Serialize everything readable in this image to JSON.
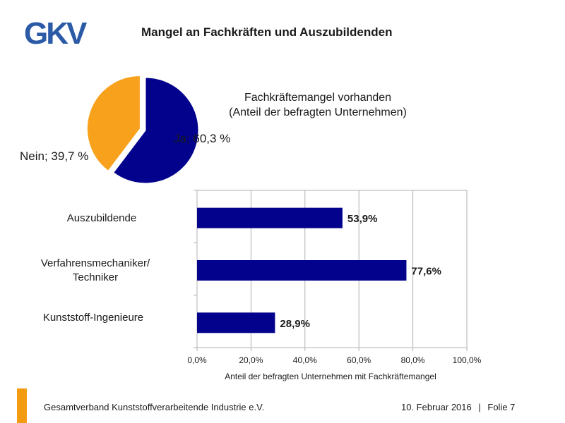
{
  "header": {
    "logo_text": "GKV",
    "title": "Mangel an Fachkräften und Auszubildenden"
  },
  "colors": {
    "blue": "#02028c",
    "orange": "#f8a11c",
    "logo_blue": "#2b5aa7",
    "accent": "#f39c11"
  },
  "chart_data": [
    {
      "type": "pie",
      "title_lines": [
        "Fachkräftemangel vorhanden",
        "(Anteil der befragten Unternehmen)"
      ],
      "slices": [
        {
          "name": "Ja",
          "value": 60.3,
          "label": "Ja; 60,3 %",
          "color": "#02028c"
        },
        {
          "name": "Nein",
          "value": 39.7,
          "label": "Nein; 39,7 %",
          "color": "#f8a11c"
        }
      ]
    },
    {
      "type": "bar",
      "orientation": "horizontal",
      "categories": [
        "Auszubildende",
        "Verfahrensmechaniker/ Techniker",
        "Kunststoff-Ingenieure"
      ],
      "category_lines": [
        [
          "Auszubildende"
        ],
        [
          "Verfahrensmechaniker/",
          "Techniker"
        ],
        [
          "Kunststoff-Ingenieure"
        ]
      ],
      "values": [
        53.9,
        77.6,
        28.9
      ],
      "data_labels": [
        "53,9%",
        "77,6%",
        "28,9%"
      ],
      "xlabel": "Anteil der befragten Unternehmen mit Fachkräftemangel",
      "xlim": [
        0,
        100
      ],
      "xticks": [
        "0,0%",
        "20,0%",
        "40,0%",
        "60,0%",
        "80,0%",
        "100,0%"
      ],
      "grid": true,
      "color": "#02028c"
    }
  ],
  "footer": {
    "organization": "Gesamtverband Kunststoffverarbeitende Industrie e.V.",
    "date": "10. Februar 2016",
    "slide": "Folie 7"
  }
}
